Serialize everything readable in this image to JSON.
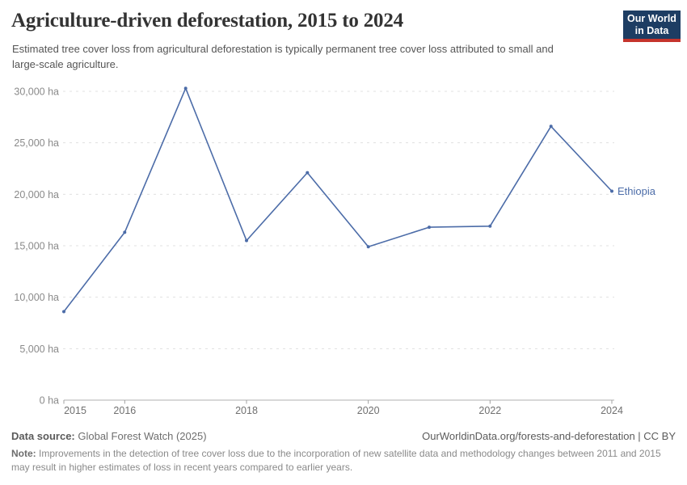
{
  "header": {
    "title": "Agriculture-driven deforestation, 2015 to 2024",
    "subtitle": "Estimated tree cover loss from agricultural deforestation is typically permanent tree cover loss attributed to small and large-scale agriculture.",
    "logo": {
      "line1": "Our World",
      "line2": "in Data"
    }
  },
  "chart_data": {
    "type": "line",
    "title": "Agriculture-driven deforestation, 2015 to 2024",
    "x": [
      2015,
      2016,
      2017,
      2018,
      2019,
      2020,
      2021,
      2022,
      2023,
      2024
    ],
    "series": [
      {
        "name": "Ethiopia",
        "values": [
          8600,
          16300,
          30300,
          15500,
          22100,
          14900,
          16800,
          16900,
          26600,
          20300
        ],
        "color": "#4C6CA8"
      }
    ],
    "y_unit": "ha",
    "ylim": [
      0,
      30000
    ],
    "yticks": [
      0,
      5000,
      10000,
      15000,
      20000,
      25000,
      30000
    ],
    "xticks": [
      2015,
      2016,
      2018,
      2020,
      2022,
      2024
    ],
    "grid": "horizontal-dashed",
    "legend_position": "end-of-line",
    "end_label": "Ethiopia"
  },
  "footer": {
    "datasource_label": "Data source:",
    "datasource": " Global Forest Watch (2025)",
    "link": "OurWorldinData.org/forests-and-deforestation | CC BY",
    "note_label": "Note:",
    "note": " Improvements in the detection of tree cover loss due to the incorporation of new satellite data and methodology changes between 2011 and 2015 may result in higher estimates of loss in recent years compared to earlier years."
  },
  "colors": {
    "line": "#4C6CA8",
    "grid": "#e0e0e0",
    "axis": "#b0b0b0",
    "tick": "#a0a0a0",
    "y_label": "#8a8a8a",
    "x_label": "#707070",
    "logo_bg": "#1d3d63",
    "logo_stripe": "#c5342c"
  }
}
